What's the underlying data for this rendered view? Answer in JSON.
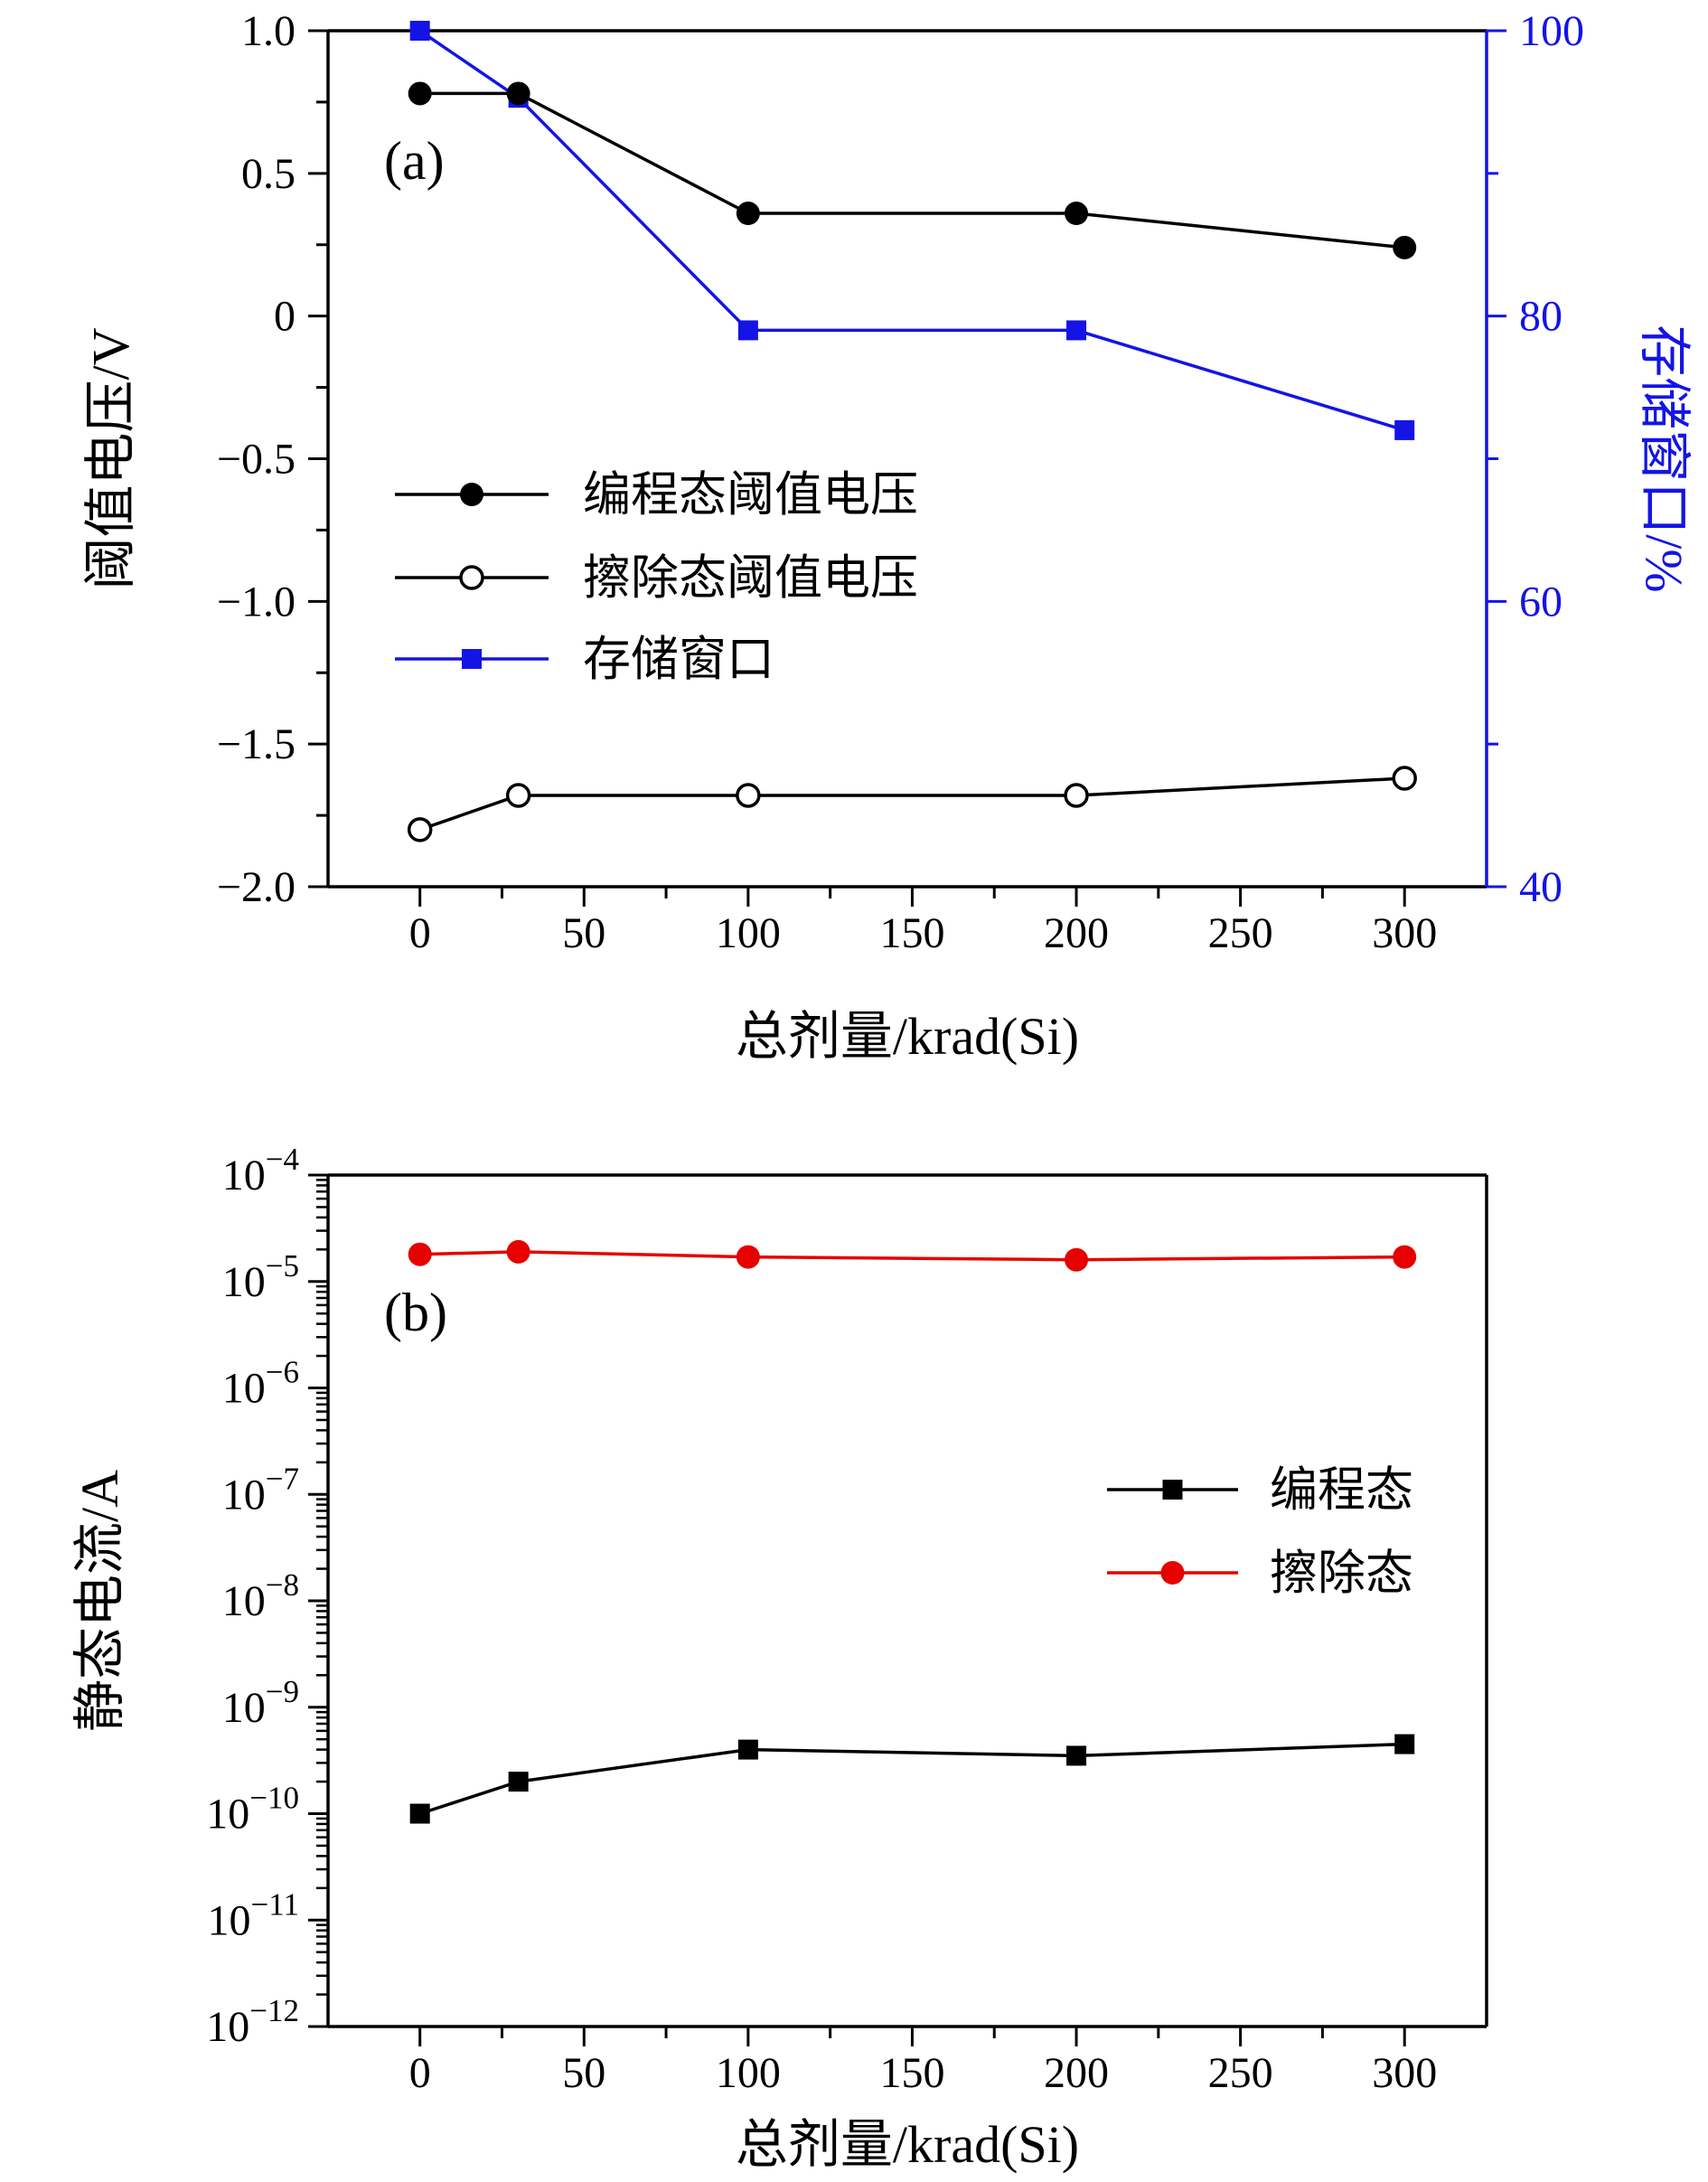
{
  "figure": {
    "background": "#ffffff"
  },
  "chart_data": [
    {
      "id": "a",
      "type": "line",
      "panel_label": "(a)",
      "xlabel": "总剂量/krad(Si)",
      "xlim": [
        -28,
        325
      ],
      "x_ticks": [
        {
          "v": 0,
          "t": "0"
        },
        {
          "v": 50,
          "t": "50"
        },
        {
          "v": 100,
          "t": "100"
        },
        {
          "v": 150,
          "t": "150"
        },
        {
          "v": 200,
          "t": "200"
        },
        {
          "v": 250,
          "t": "250"
        },
        {
          "v": 300,
          "t": "300"
        }
      ],
      "x_minor": [
        25,
        75,
        125,
        175,
        225,
        275
      ],
      "left_axis": {
        "label": "阈值电压/V",
        "color": "#000000",
        "lim": [
          -2.0,
          1.0
        ],
        "ticks": [
          {
            "v": 1.0,
            "t": "1.0"
          },
          {
            "v": 0.5,
            "t": "0.5"
          },
          {
            "v": 0,
            "t": "0"
          },
          {
            "v": -0.5,
            "t": "−0.5"
          },
          {
            "v": -1.0,
            "t": "−1.0"
          },
          {
            "v": -1.5,
            "t": "−1.5"
          },
          {
            "v": -2.0,
            "t": "−2.0"
          }
        ],
        "minor": [
          0.75,
          0.25,
          -0.25,
          -0.75,
          -1.25,
          -1.75
        ]
      },
      "right_axis": {
        "label": "存储窗口/%",
        "color": "#1414e6",
        "lim": [
          40,
          100
        ],
        "ticks": [
          {
            "v": 100,
            "t": "100"
          },
          {
            "v": 80,
            "t": "80"
          },
          {
            "v": 60,
            "t": "60"
          },
          {
            "v": 40,
            "t": "40"
          }
        ],
        "minor": [
          90,
          70,
          50
        ]
      },
      "x": [
        0,
        30,
        100,
        200,
        300
      ],
      "series": [
        {
          "name": "编程态阈值电压",
          "axis": "left",
          "color": "#000000",
          "marker": "filled-circle",
          "values": [
            0.78,
            0.78,
            0.36,
            0.36,
            0.24
          ]
        },
        {
          "name": "擦除态阈值电压",
          "axis": "left",
          "color": "#000000",
          "marker": "open-circle",
          "values": [
            -1.8,
            -1.68,
            -1.68,
            -1.68,
            -1.62
          ]
        },
        {
          "name": "存储窗口",
          "axis": "right",
          "color": "#1414e6",
          "marker": "filled-square",
          "values": [
            100,
            95.3,
            79,
            79,
            72
          ]
        }
      ],
      "legend_position": "middle-left-inside"
    },
    {
      "id": "b",
      "type": "line-log",
      "panel_label": "(b)",
      "xlabel": "总剂量/krad(Si)",
      "ylabel": "静态电流/A",
      "xlim": [
        -28,
        325
      ],
      "x_ticks": [
        {
          "v": 0,
          "t": "0"
        },
        {
          "v": 50,
          "t": "50"
        },
        {
          "v": 100,
          "t": "100"
        },
        {
          "v": 150,
          "t": "150"
        },
        {
          "v": 200,
          "t": "200"
        },
        {
          "v": 250,
          "t": "250"
        },
        {
          "v": 300,
          "t": "300"
        }
      ],
      "x_minor": [
        25,
        75,
        125,
        175,
        225,
        275
      ],
      "y_axis": {
        "exp_min": -12,
        "exp_max": -4,
        "ticks": [
          {
            "exp": -4,
            "t": "−4"
          },
          {
            "exp": -5,
            "t": "−5"
          },
          {
            "exp": -6,
            "t": "−6"
          },
          {
            "exp": -7,
            "t": "−7"
          },
          {
            "exp": -8,
            "t": "−8"
          },
          {
            "exp": -9,
            "t": "−9"
          },
          {
            "exp": -10,
            "t": "−10"
          },
          {
            "exp": -11,
            "t": "−11"
          },
          {
            "exp": -12,
            "t": "−12"
          }
        ]
      },
      "x": [
        0,
        30,
        100,
        200,
        300
      ],
      "series": [
        {
          "name": "编程态",
          "color": "#000000",
          "marker": "filled-square",
          "values": [
            1e-10,
            2e-10,
            4e-10,
            3.5e-10,
            4.5e-10
          ]
        },
        {
          "name": "擦除态",
          "color": "#e60000",
          "marker": "filled-circle",
          "values": [
            1.8e-05,
            1.9e-05,
            1.7e-05,
            1.6e-05,
            1.7e-05
          ]
        }
      ],
      "legend_position": "middle-right-inside"
    }
  ]
}
